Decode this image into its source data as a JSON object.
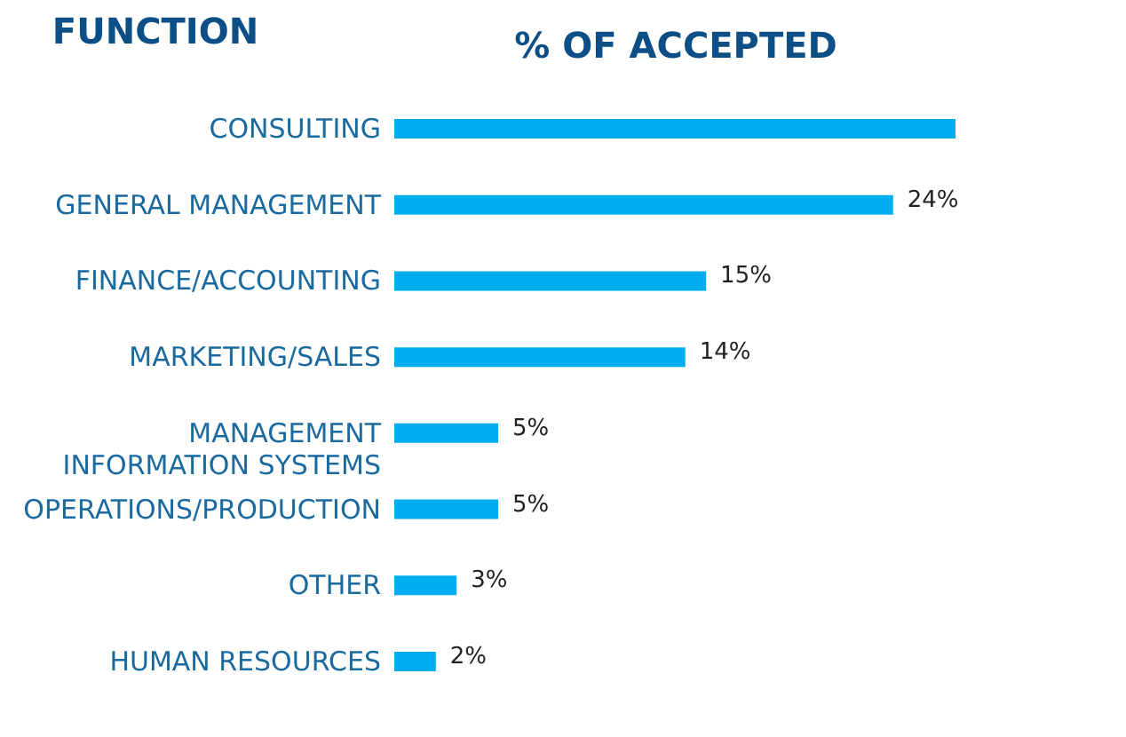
{
  "chart_data": {
    "type": "bar",
    "orientation": "horizontal",
    "ylabel": "FUNCTION",
    "xlabel": "% OF ACCEPTED",
    "categories": [
      "CONSULTING",
      "GENERAL MANAGEMENT",
      "FINANCE/ACCOUNTING",
      "MARKETING/SALES",
      "MANAGEMENT\nINFORMATION SYSTEMS",
      "OPERATIONS/PRODUCTION",
      "OTHER",
      "HUMAN RESOURCES"
    ],
    "values": [
      27,
      24,
      15,
      14,
      5,
      5,
      3,
      2
    ],
    "value_labels": [
      null,
      "24%",
      "15%",
      "14%",
      "5%",
      "5%",
      "3%",
      "2%"
    ],
    "color": "#00aeef",
    "grid": false
  }
}
